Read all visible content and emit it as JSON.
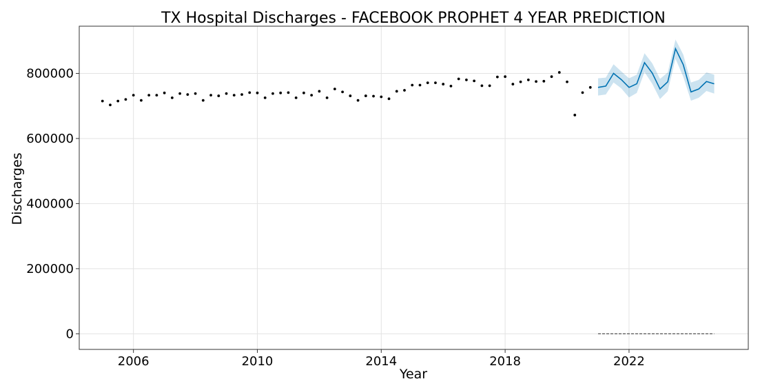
{
  "chart_data": {
    "type": "scatter",
    "title": "TX Hospital Discharges - FACEBOOK PROPHET 4 YEAR PREDICTION",
    "xlabel": "Year",
    "ylabel": "Discharges",
    "xlim": [
      2004.25,
      2025.85
    ],
    "ylim": [
      -48000,
      945000
    ],
    "x_ticks": [
      2006,
      2010,
      2014,
      2018,
      2022
    ],
    "y_ticks": [
      0,
      200000,
      400000,
      600000,
      800000
    ],
    "grid": true,
    "colors": {
      "observed": "#000000",
      "forecast_line": "#0072B2",
      "forecast_band": "#0072B2",
      "forecast_band_opacity": 0.2,
      "baseline": "#444444",
      "grid": "#e3e3e3"
    },
    "observed": {
      "x": [
        2005.0,
        2005.25,
        2005.5,
        2005.75,
        2006.0,
        2006.25,
        2006.5,
        2006.75,
        2007.0,
        2007.25,
        2007.5,
        2007.75,
        2008.0,
        2008.25,
        2008.5,
        2008.75,
        2009.0,
        2009.25,
        2009.5,
        2009.75,
        2010.0,
        2010.25,
        2010.5,
        2010.75,
        2011.0,
        2011.25,
        2011.5,
        2011.75,
        2012.0,
        2012.25,
        2012.5,
        2012.75,
        2013.0,
        2013.25,
        2013.5,
        2013.75,
        2014.0,
        2014.25,
        2014.5,
        2014.75,
        2015.0,
        2015.25,
        2015.5,
        2015.75,
        2016.0,
        2016.25,
        2016.5,
        2016.75,
        2017.0,
        2017.25,
        2017.5,
        2017.75,
        2018.0,
        2018.25,
        2018.5,
        2018.75,
        2019.0,
        2019.25,
        2019.5,
        2019.75,
        2020.0,
        2020.25,
        2020.5,
        2020.75
      ],
      "y": [
        715000,
        703000,
        715000,
        720000,
        733000,
        717000,
        733000,
        733000,
        740000,
        725000,
        738000,
        735000,
        738000,
        717000,
        733000,
        731000,
        738000,
        733000,
        735000,
        741000,
        740000,
        725000,
        738000,
        740000,
        741000,
        725000,
        740000,
        733000,
        745000,
        725000,
        752000,
        743000,
        731000,
        717000,
        731000,
        730000,
        728000,
        722000,
        745000,
        748000,
        764000,
        764000,
        771000,
        771000,
        767000,
        761000,
        783000,
        780000,
        777000,
        762000,
        762000,
        789000,
        790000,
        767000,
        774000,
        780000,
        775000,
        776000,
        790000,
        803000,
        774000,
        672000,
        741000,
        757000
      ]
    },
    "forecast": {
      "x": [
        2021.0,
        2021.25,
        2021.5,
        2021.75,
        2022.0,
        2022.25,
        2022.5,
        2022.75,
        2023.0,
        2023.25,
        2023.5,
        2023.75,
        2024.0,
        2024.25,
        2024.5,
        2024.75
      ],
      "yhat": [
        757000,
        761000,
        800000,
        781000,
        757000,
        768000,
        833000,
        801000,
        752000,
        774000,
        876000,
        827000,
        743000,
        752000,
        775000,
        768000
      ],
      "yhat_lower": [
        732000,
        735000,
        772000,
        754000,
        726000,
        740000,
        804000,
        768000,
        721000,
        745000,
        845000,
        790000,
        716000,
        725000,
        746000,
        738000
      ],
      "yhat_upper": [
        785000,
        787000,
        828000,
        806000,
        785000,
        796000,
        862000,
        831000,
        783000,
        803000,
        904000,
        858000,
        772000,
        780000,
        803000,
        796000
      ]
    },
    "baseline": {
      "x": [
        2021.0,
        2024.75
      ],
      "y": [
        0,
        0
      ],
      "style": "dashed"
    }
  }
}
